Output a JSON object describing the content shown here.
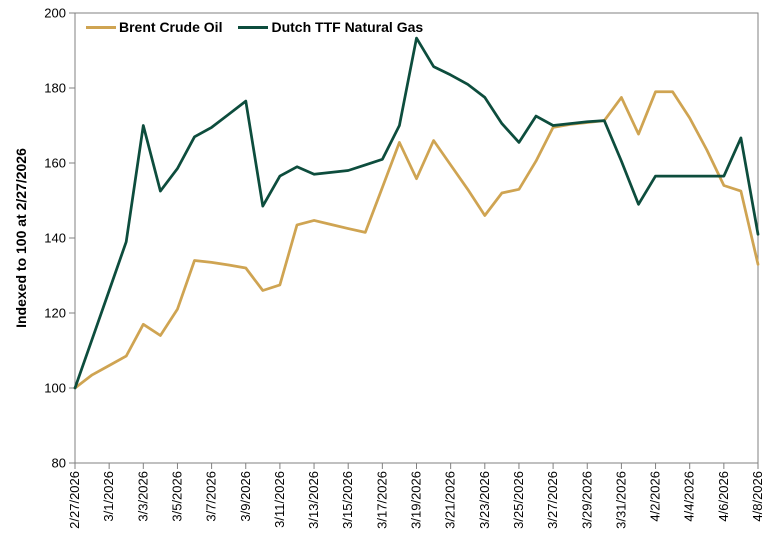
{
  "chart_data": {
    "type": "line",
    "title": "",
    "xlabel": "",
    "ylabel": "Indexed to 100 at 2/27/2026",
    "ylim": [
      80,
      200
    ],
    "y_ticks": [
      80,
      100,
      120,
      140,
      160,
      180,
      200
    ],
    "grid": false,
    "legend_position": "top-left",
    "x": [
      "2/27/2026",
      "2/28/2026",
      "3/1/2026",
      "3/2/2026",
      "3/3/2026",
      "3/4/2026",
      "3/5/2026",
      "3/6/2026",
      "3/7/2026",
      "3/8/2026",
      "3/9/2026",
      "3/10/2026",
      "3/11/2026",
      "3/12/2026",
      "3/13/2026",
      "3/14/2026",
      "3/15/2026",
      "3/16/2026",
      "3/17/2026",
      "3/18/2026",
      "3/19/2026",
      "3/20/2026",
      "3/21/2026",
      "3/22/2026",
      "3/23/2026",
      "3/24/2026",
      "3/25/2026",
      "3/26/2026",
      "3/27/2026",
      "3/28/2026",
      "3/29/2026",
      "3/30/2026",
      "3/31/2026",
      "4/1/2026",
      "4/2/2026",
      "4/3/2026",
      "4/4/2026",
      "4/5/2026",
      "4/6/2026",
      "4/7/2026",
      "4/8/2026"
    ],
    "x_tick_labels": [
      "2/27/2026",
      "3/1/2026",
      "3/3/2026",
      "3/5/2026",
      "3/7/2026",
      "3/9/2026",
      "3/11/2026",
      "3/13/2026",
      "3/15/2026",
      "3/17/2026",
      "3/19/2026",
      "3/21/2026",
      "3/23/2026",
      "3/25/2026",
      "3/27/2026",
      "3/29/2026",
      "3/31/2026",
      "4/2/2026",
      "4/4/2026",
      "4/6/2026",
      "4/8/2026"
    ],
    "series": [
      {
        "name": "Brent Crude Oil",
        "color": "#CFA452",
        "values": [
          100,
          103.5,
          106,
          108.5,
          117,
          114,
          121,
          134,
          133.5,
          132.8,
          132,
          126,
          127.5,
          143.5,
          144.7,
          143.6,
          142.5,
          141.5,
          153.5,
          165.5,
          155.8,
          166,
          159.5,
          153,
          146,
          152,
          153,
          160.5,
          169.5,
          170.3,
          170.8,
          171.3,
          177.5,
          167.7,
          179,
          179,
          172,
          163.5,
          154,
          152.5,
          133
        ]
      },
      {
        "name": "Dutch TTF Natural Gas",
        "color": "#0D4D3D",
        "values": [
          100,
          113,
          126,
          139,
          170,
          152.5,
          158.5,
          167,
          169.5,
          173,
          176.5,
          148.5,
          156.5,
          159,
          157,
          157.5,
          158,
          159.5,
          161,
          170,
          193.3,
          185.7,
          183.5,
          181,
          177.5,
          170.5,
          165.5,
          172.5,
          170,
          170.5,
          171,
          171.3,
          160.5,
          149,
          156.5,
          156.5,
          156.5,
          156.5,
          156.5,
          166.7,
          141
        ]
      }
    ]
  },
  "colors": {
    "axis": "#808080",
    "label_text": "#000000",
    "background": "#FFFFFF"
  }
}
